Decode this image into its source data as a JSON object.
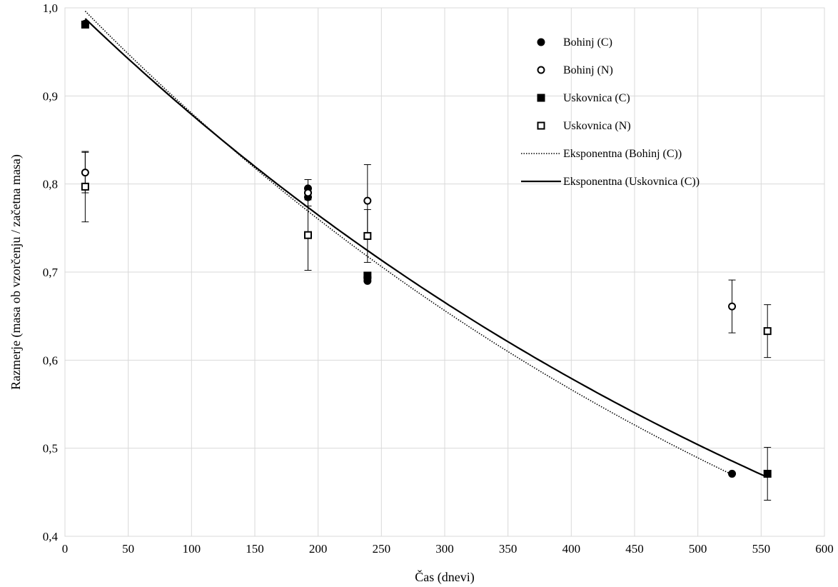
{
  "chart_data": {
    "type": "scatter",
    "title": "",
    "xlabel": "Čas (dnevi)",
    "ylabel": "Razmerje (masa ob vzorčenju / začetna masa)",
    "xlim": [
      0,
      600
    ],
    "ylim": [
      0.4,
      1.0
    ],
    "xticks": [
      0,
      50,
      100,
      150,
      200,
      250,
      300,
      350,
      400,
      450,
      500,
      550,
      600
    ],
    "yticks": [
      0.4,
      0.5,
      0.6,
      0.7,
      0.8,
      0.9,
      1.0
    ],
    "xtick_labels": [
      "0",
      "50",
      "100",
      "150",
      "200",
      "250",
      "300",
      "350",
      "400",
      "450",
      "500",
      "550",
      "600"
    ],
    "ytick_labels": [
      "0,4",
      "0,5",
      "0,6",
      "0,7",
      "0,8",
      "0,9",
      "1,0"
    ],
    "grid": true,
    "legend_position": "top-right",
    "series": [
      {
        "name": "Bohinj (C)",
        "marker": "filled-circle",
        "color": "#000000",
        "points": [
          {
            "x": 16,
            "y": 0.982
          },
          {
            "x": 192,
            "y": 0.795
          },
          {
            "x": 192,
            "y": 0.79
          },
          {
            "x": 192,
            "y": 0.785
          },
          {
            "x": 239,
            "y": 0.69
          },
          {
            "x": 239,
            "y": 0.694
          },
          {
            "x": 527,
            "y": 0.471
          }
        ]
      },
      {
        "name": "Bohinj (N)",
        "marker": "open-circle",
        "color": "#000000",
        "points": [
          {
            "x": 16,
            "y": 0.813,
            "err": 0.023
          },
          {
            "x": 192,
            "y": 0.79,
            "err": 0.015
          },
          {
            "x": 239,
            "y": 0.781,
            "err": 0.041
          },
          {
            "x": 527,
            "y": 0.661,
            "err": 0.03
          }
        ]
      },
      {
        "name": "Uskovnica (C)",
        "marker": "filled-square",
        "color": "#000000",
        "points": [
          {
            "x": 16,
            "y": 0.981
          },
          {
            "x": 239,
            "y": 0.696
          },
          {
            "x": 555,
            "y": 0.471,
            "err": 0.03
          }
        ]
      },
      {
        "name": "Uskovnica (N)",
        "marker": "open-square",
        "color": "#000000",
        "points": [
          {
            "x": 16,
            "y": 0.797,
            "err": 0.04
          },
          {
            "x": 192,
            "y": 0.742,
            "err": 0.04
          },
          {
            "x": 239,
            "y": 0.741,
            "err": 0.03
          },
          {
            "x": 555,
            "y": 0.633,
            "err": 0.03
          }
        ]
      },
      {
        "name": "Eksponentna (Bohinj (C))",
        "marker": "dotted-line",
        "color": "#000000",
        "fit": {
          "a": 1.02,
          "b": -0.00147,
          "x_range": [
            16,
            527
          ]
        }
      },
      {
        "name": "Eksponentna (Uskovnica (C))",
        "marker": "solid-line",
        "color": "#000000",
        "fit": {
          "a": 1.01,
          "b": -0.00139,
          "x_range": [
            16,
            555
          ]
        }
      }
    ]
  }
}
